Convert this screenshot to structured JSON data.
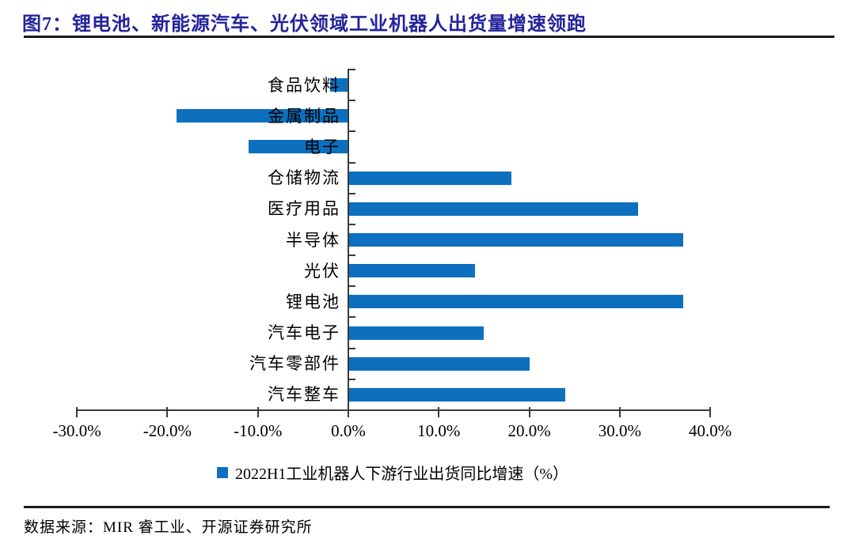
{
  "title": "图7：锂电池、新能源汽车、光伏领域工业机器人出货量增速领跑",
  "source": "数据来源：MIR 睿工业、开源证券研究所",
  "colors": {
    "title": "#23239C",
    "divider": "#1A1A1A",
    "axis": "#3A3A3A",
    "bar": "#0D70BE",
    "text": "#000000"
  },
  "chart_data": {
    "type": "bar",
    "orientation": "horizontal",
    "categories": [
      "食品饮料",
      "金属制品",
      "电子",
      "仓储物流",
      "医疗用品",
      "半导体",
      "光伏",
      "锂电池",
      "汽车电子",
      "汽车零部件",
      "汽车整车"
    ],
    "values": [
      -2,
      -19,
      -11,
      18,
      32,
      37,
      14,
      37,
      15,
      20,
      24
    ],
    "unit": "%",
    "legend": "2022H1工业机器人下游行业出货同比增速（%）",
    "legend_position": "bottom",
    "xlim": [
      -30,
      40
    ],
    "x_tick_values": [
      -30,
      -20,
      -10,
      0,
      10,
      20,
      30,
      40
    ],
    "x_tick_labels": [
      "-30.0%",
      "-20.0%",
      "-10.0%",
      "0.0%",
      "10.0%",
      "20.0%",
      "30.0%",
      "40.0%"
    ],
    "grid": false,
    "bar_color": "#0D70BE"
  }
}
